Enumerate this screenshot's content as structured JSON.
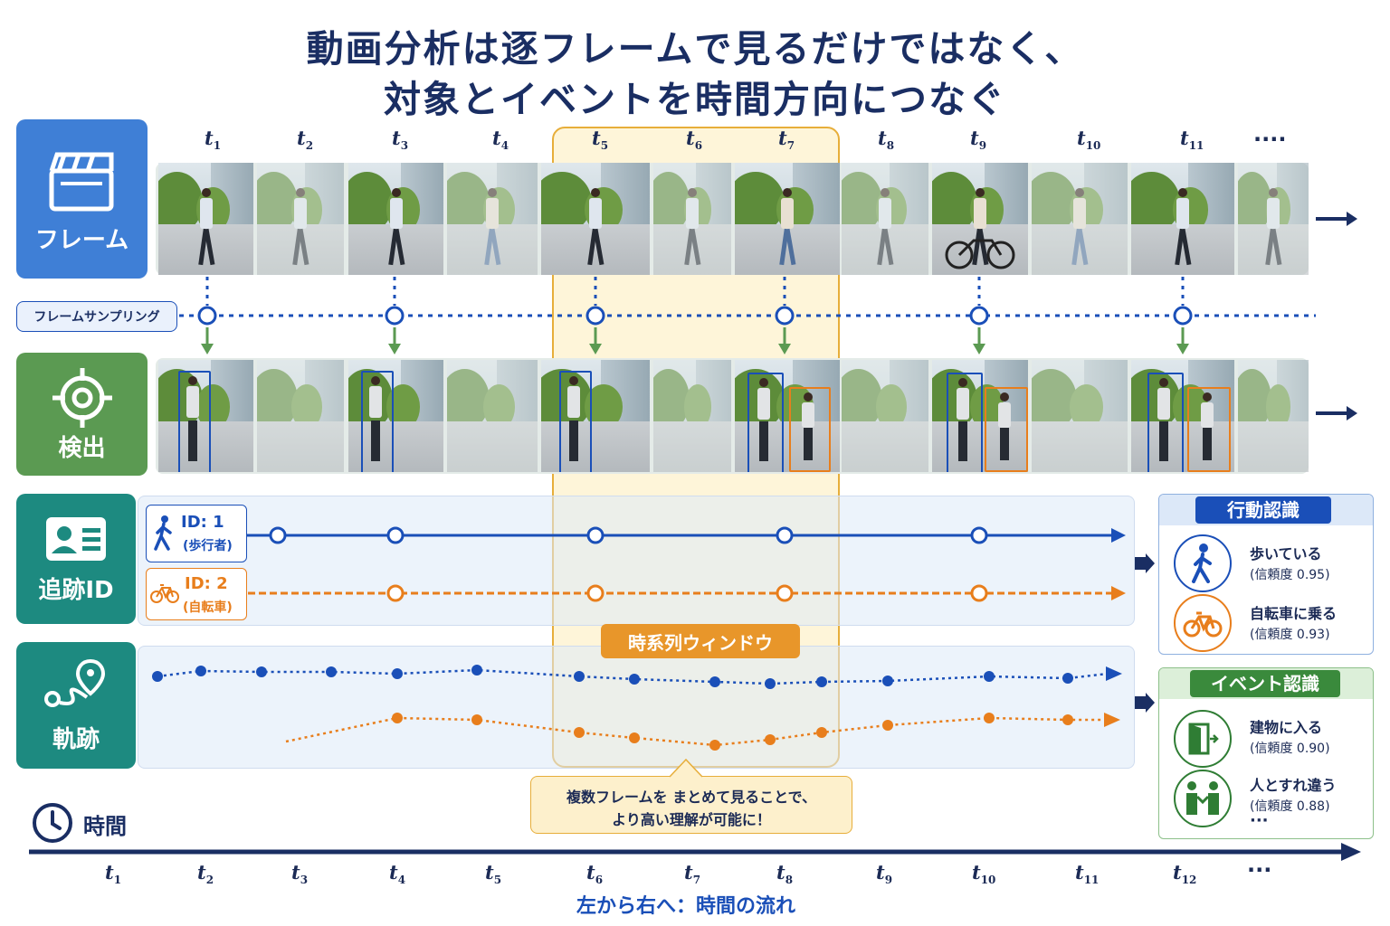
{
  "title_line1": "動画分析は逐フレームで見るだけではなく、",
  "title_line2": "対象とイベントを時間方向につなぐ",
  "rows": {
    "frame": "フレーム",
    "detect": "検出",
    "track": "追跡ID",
    "trajectory": "軌跡"
  },
  "sampling_label": "フレームサンプリング",
  "top_t_labels": [
    {
      "t": "t",
      "s": "1"
    },
    {
      "t": "t",
      "s": "2"
    },
    {
      "t": "t",
      "s": "3"
    },
    {
      "t": "t",
      "s": "4"
    },
    {
      "t": "t",
      "s": "5"
    },
    {
      "t": "t",
      "s": "6"
    },
    {
      "t": "t",
      "s": "7"
    },
    {
      "t": "t",
      "s": "8"
    },
    {
      "t": "t",
      "s": "9"
    },
    {
      "t": "t",
      "s": "10"
    },
    {
      "t": "t",
      "s": "11"
    }
  ],
  "top_ellipsis": "····",
  "ids": {
    "id1": "ID: 1",
    "id1_sub": "(歩行者)",
    "id2": "ID: 2",
    "id2_sub": "(自転車)"
  },
  "window_label": "時系列ウィンドウ",
  "callout_line1": "複数フレームを まとめて見ることで、",
  "callout_line2": "より高い理解が可能に！",
  "action_panel": {
    "title": "行動認識",
    "items": [
      {
        "label": "歩いている",
        "conf": "(信頼度 0.95)"
      },
      {
        "label": "自転車に乗る",
        "conf": "(信頼度 0.93)"
      }
    ]
  },
  "event_panel": {
    "title": "イベント認識",
    "items": [
      {
        "label": "建物に入る",
        "conf": "(信頼度 0.90)"
      },
      {
        "label": "人とすれ違う",
        "conf": "(信頼度 0.88)"
      }
    ],
    "more": "···"
  },
  "time_label": "時間",
  "bottom_t_labels": [
    {
      "t": "t",
      "s": "1"
    },
    {
      "t": "t",
      "s": "2"
    },
    {
      "t": "t",
      "s": "3"
    },
    {
      "t": "t",
      "s": "4"
    },
    {
      "t": "t",
      "s": "5"
    },
    {
      "t": "t",
      "s": "6"
    },
    {
      "t": "t",
      "s": "7"
    },
    {
      "t": "t",
      "s": "8"
    },
    {
      "t": "t",
      "s": "9"
    },
    {
      "t": "t",
      "s": "10"
    },
    {
      "t": "t",
      "s": "11"
    },
    {
      "t": "t",
      "s": "12"
    }
  ],
  "bottom_ellipsis": "···",
  "flow_caption": "左から右へ：時間の流れ",
  "colors": {
    "blue": "#1a4fb8",
    "orange": "#e87e1c",
    "green": "#5b9a52",
    "teal": "#1d8a80",
    "navy": "#1a2e63"
  }
}
